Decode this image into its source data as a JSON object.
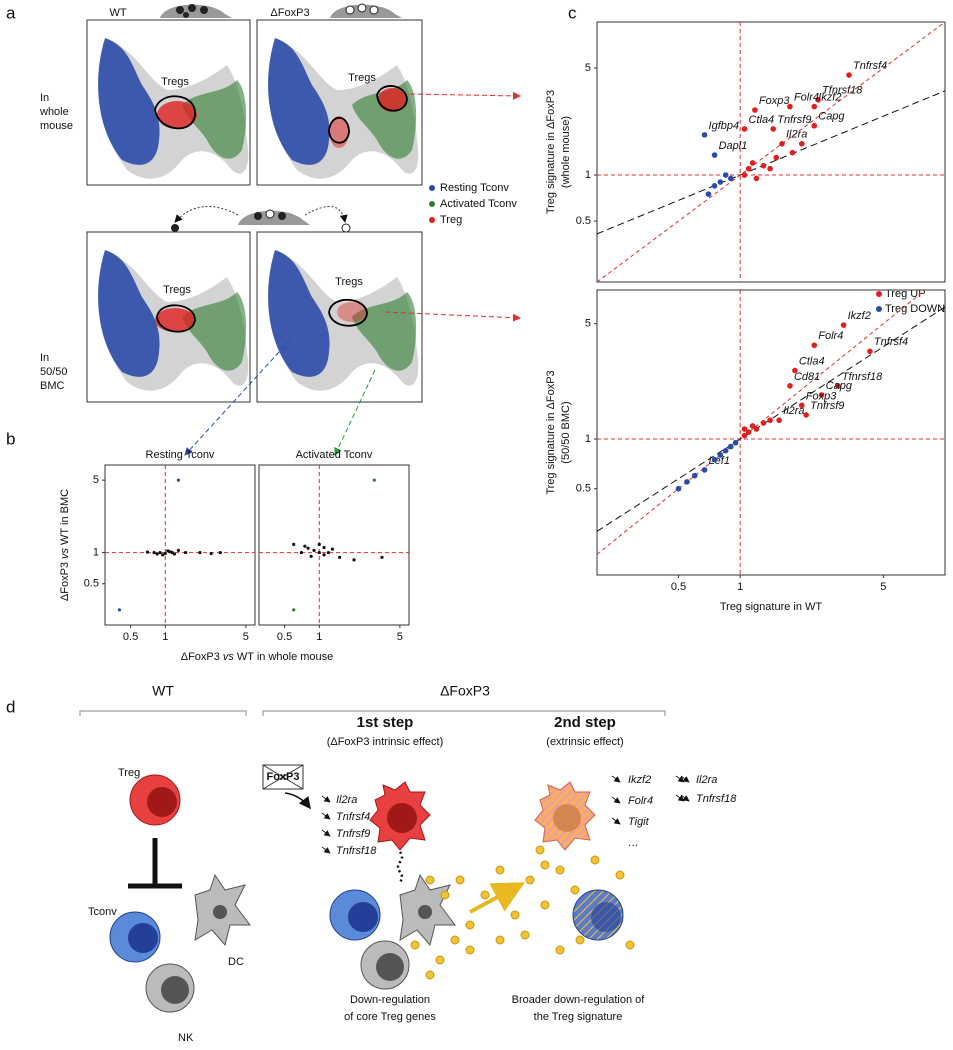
{
  "panel_labels": [
    "a",
    "b",
    "c",
    "d"
  ],
  "umap": {
    "columns": [
      "WT",
      "ΔFoxP3"
    ],
    "rows": [
      [
        "In",
        "whole",
        "mouse"
      ],
      [
        "In",
        "50/50",
        "BMC"
      ]
    ],
    "cluster_label": "Tregs",
    "legend": [
      {
        "name": "Resting Tconv",
        "color": "#2b4ba8"
      },
      {
        "name": "Activated Tconv",
        "color": "#2e7d32"
      },
      {
        "name": "Treg",
        "color": "#e02020"
      }
    ]
  },
  "chart_data": [
    {
      "type": "scatter",
      "title": "Resting Tconv",
      "log": true,
      "xlim": [
        0.3,
        6
      ],
      "ylim": [
        0.2,
        7
      ],
      "xticks": [
        0.5,
        1,
        5
      ],
      "yticks": [
        0.5,
        1,
        5
      ],
      "ref_lines": {
        "x": 1,
        "y": 1
      },
      "ref_color": "#e03030",
      "xlabel": [
        "ΔFoxP3",
        "vs",
        "WT in whole mouse"
      ],
      "ylabel": [
        "ΔFoxP3",
        "vs",
        "WT in BMC"
      ],
      "series": [
        {
          "color": "#111111",
          "x": [
            0.9,
            1.0,
            1.1,
            0.8,
            1.2,
            1.5,
            2.0,
            0.7,
            3.0,
            1.3,
            0.95,
            1.05,
            0.85,
            1.15,
            2.5
          ],
          "y": [
            1.0,
            0.98,
            1.02,
            1.0,
            0.97,
            1.0,
            1.0,
            1.01,
            1.0,
            1.05,
            0.95,
            1.04,
            0.97,
            1.0,
            0.98
          ]
        },
        {
          "color": "#2b4ba8",
          "x": [
            1.3,
            0.4
          ],
          "y": [
            5,
            0.28
          ]
        }
      ]
    },
    {
      "type": "scatter",
      "title": "Activated Tconv",
      "log": true,
      "xlim": [
        0.3,
        6
      ],
      "ylim": [
        0.2,
        7
      ],
      "xticks": [
        0.5,
        1,
        5
      ],
      "ref_lines": {
        "x": 1,
        "y": 1
      },
      "ref_color": "#e03030",
      "series": [
        {
          "color": "#111111",
          "x": [
            0.9,
            1.0,
            1.1,
            0.8,
            1.2,
            0.7,
            1.5,
            2.0,
            0.6,
            1.0,
            0.85,
            1.3,
            0.75,
            1.1,
            3.5
          ],
          "y": [
            1.05,
            1.0,
            0.95,
            1.1,
            1.0,
            1.0,
            0.9,
            0.85,
            1.2,
            1.2,
            0.92,
            1.08,
            1.15,
            1.12,
            0.9
          ]
        },
        {
          "color": "#2e7d32",
          "x": [
            3.0,
            0.6
          ],
          "y": [
            5,
            0.28
          ]
        }
      ]
    },
    {
      "type": "scatter",
      "log": true,
      "xlim": [
        0.2,
        10
      ],
      "ylim": [
        0.2,
        10
      ],
      "yticks": [
        0.5,
        1,
        5
      ],
      "ref_lines": {
        "x": 1,
        "y": 1
      },
      "ref_color": "#e03030",
      "identity_line": true,
      "fit_slope": 0.55,
      "ylabel_lines": [
        "Treg signature in ΔFoxP3",
        "(whole mouse)"
      ],
      "series": [
        {
          "name": "Treg UP",
          "color": "#e02020",
          "x": [
            2.4,
            1.75,
            3.4,
            2.3,
            1.18,
            1.05,
            2.3,
            1.6,
            1.45,
            1.05,
            1.1,
            1.2,
            1.3,
            1.15,
            1.4,
            1.5,
            1.8,
            2.0
          ],
          "y": [
            3.1,
            2.8,
            4.5,
            2.8,
            2.66,
            2.0,
            2.1,
            1.6,
            2.0,
            1.0,
            1.1,
            0.95,
            1.15,
            1.2,
            1.1,
            1.3,
            1.4,
            1.6
          ],
          "labels": [
            "Tfnrsf18",
            "Folr4",
            "Tnfrsf4",
            "Ikzf2",
            "Foxp3",
            "Ctla4",
            "Capg",
            "Il2ra",
            "Tnfrsf9",
            null,
            null,
            null,
            null,
            null,
            null,
            null,
            null,
            null
          ]
        },
        {
          "name": "Treg DOWN",
          "color": "#2b4ba8",
          "x": [
            0.67,
            0.75,
            0.8,
            0.85,
            0.9,
            0.75,
            0.7
          ],
          "y": [
            1.83,
            1.35,
            0.9,
            1.0,
            0.95,
            0.85,
            0.75
          ],
          "labels": [
            "Igfbp4",
            "Dapl1",
            null,
            null,
            null,
            null,
            null
          ]
        }
      ]
    },
    {
      "type": "scatter",
      "log": true,
      "xlim": [
        0.2,
        10
      ],
      "ylim": [
        0.15,
        8
      ],
      "xticks": [
        0.5,
        1,
        5
      ],
      "yticks": [
        0.5,
        1,
        5
      ],
      "ref_lines": {
        "x": 1,
        "y": 1
      },
      "ref_color": "#e03030",
      "identity_line": true,
      "fit_slope": 0.8,
      "xlabel": "Treg signature in WT",
      "ylabel_lines": [
        "Treg signature in ΔFoxP3",
        "(50/50 BMC)"
      ],
      "series": [
        {
          "color": "#e02020",
          "x": [
            3.2,
            2.3,
            4.3,
            1.85,
            1.75,
            3.0,
            2.5,
            2.0,
            2.1,
            1.55,
            1.05,
            1.1,
            1.2,
            1.15,
            1.3,
            1.05,
            1.4
          ],
          "y": [
            4.9,
            3.7,
            3.4,
            2.6,
            2.1,
            2.1,
            1.85,
            1.6,
            1.4,
            1.3,
            1.05,
            1.1,
            1.15,
            1.2,
            1.25,
            1.15,
            1.3
          ],
          "labels": [
            "Ikzf2",
            "Folr4",
            "Tnfrsf4",
            "Ctla4",
            "Cd81",
            "Tfnrsf18",
            "Capg",
            "Foxp3",
            "Tnfrsf9",
            "Il2ra",
            null,
            null,
            null,
            null,
            null,
            null,
            null
          ]
        },
        {
          "color": "#2b4ba8",
          "x": [
            0.67,
            0.55,
            0.6,
            0.75,
            0.8,
            0.85,
            0.9,
            0.95,
            0.5
          ],
          "y": [
            0.65,
            0.55,
            0.6,
            0.75,
            0.8,
            0.85,
            0.9,
            0.95,
            0.5
          ],
          "labels": [
            "Lef1",
            null,
            null,
            null,
            null,
            null,
            null,
            null,
            null
          ]
        }
      ]
    }
  ],
  "model": {
    "groups": [
      "WT",
      "ΔFoxP3"
    ],
    "steps": [
      {
        "title": "1st step",
        "subtitle": "(ΔFoxP3 intrinsic effect)"
      },
      {
        "title": "2nd step",
        "subtitle": "(extrinsic effect)"
      }
    ],
    "foxp3": "FoxP3",
    "cells": {
      "treg": "Treg",
      "tconv": "Tconv",
      "dc": "DC",
      "nk": "NK"
    },
    "genes_step1": [
      "Il2ra",
      "Tnfrsf4",
      "Tnfrsf9",
      "Tnfrsf18"
    ],
    "genes_step2": [
      "Ikzf2",
      "Folr4",
      "Tigit",
      "…"
    ],
    "genes_step2_strong": [
      "Il2ra",
      "Tnfrsf18"
    ],
    "captions": [
      [
        "Down-regulation",
        "of core Treg genes"
      ],
      [
        "Broader down-regulation of",
        "the Treg signature"
      ]
    ]
  }
}
